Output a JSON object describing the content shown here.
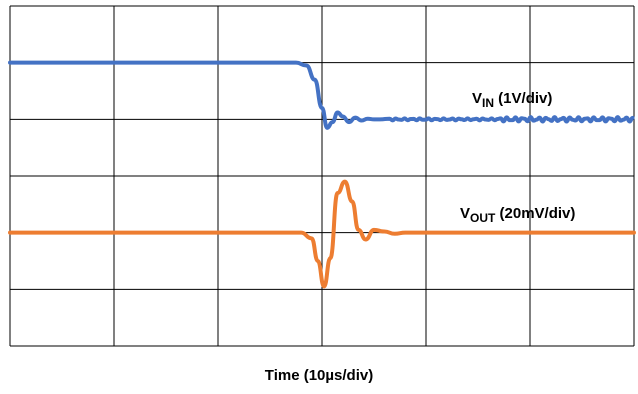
{
  "chart_data": {
    "type": "line",
    "xlabel": "Time (10µs/div)",
    "ylabel": "",
    "grid": true,
    "x_divisions": 6,
    "y_divisions": 6,
    "xlim": [
      0,
      60
    ],
    "x_unit": "µs",
    "series": [
      {
        "name": "VIN (1V/div)",
        "label_main": "V",
        "label_sub": "IN",
        "label_rest": " (1V/div)",
        "color": "#4472c4",
        "description": "step down of ~1 division at t≈29µs, small ringing, slight noise afterward",
        "x": [
          0,
          27.5,
          28.5,
          29.3,
          30.0,
          30.5,
          31.0,
          31.5,
          32.0,
          32.6,
          33.2,
          33.8,
          34.4,
          35.0,
          35.6,
          36.5,
          60
        ],
        "y": [
          5.0,
          5.0,
          4.95,
          4.7,
          4.2,
          3.85,
          3.95,
          4.12,
          4.05,
          3.95,
          4.03,
          3.98,
          4.01,
          4.0,
          4.0,
          4.0,
          4.0
        ],
        "y_div": [
          5.0,
          5.0,
          4.95,
          4.7,
          4.2,
          3.85,
          3.95,
          4.12,
          4.05,
          3.95,
          4.03,
          3.98,
          4.01,
          4.0,
          4.0,
          4.0,
          4.0
        ]
      },
      {
        "name": "VOUT (20mV/div)",
        "label_main": "V",
        "label_sub": "OUT",
        "label_rest": " (20mV/div)",
        "color": "#ed7d31",
        "description": "transient at t≈29µs: dip then overshoot, damped ringing, settles",
        "x": [
          0,
          28.0,
          29.0,
          29.6,
          30.2,
          30.8,
          31.5,
          32.2,
          32.9,
          33.5,
          34.2,
          35.0,
          36.0,
          37.0,
          38.0,
          40.0,
          60
        ],
        "y_div": [
          2.0,
          2.0,
          1.9,
          1.5,
          1.05,
          1.55,
          2.7,
          2.9,
          2.55,
          2.05,
          1.88,
          2.05,
          2.02,
          1.98,
          2.0,
          2.0,
          2.0
        ]
      }
    ]
  }
}
